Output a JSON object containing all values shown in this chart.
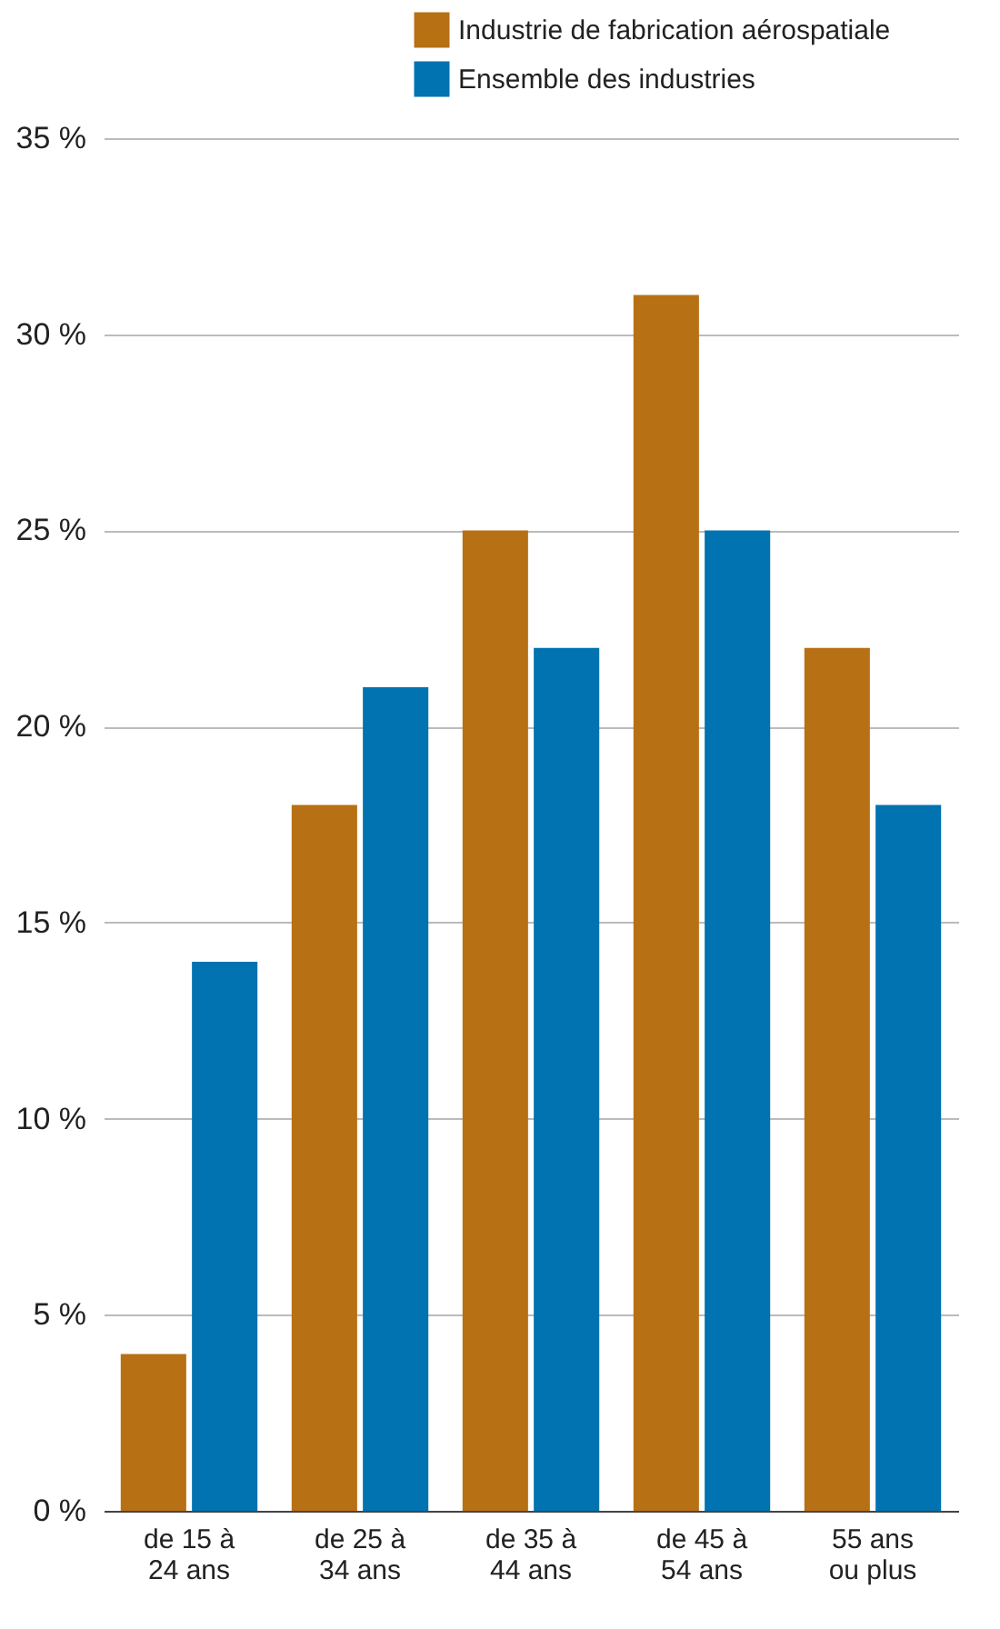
{
  "chart_data": {
    "type": "bar",
    "categories": [
      "de 15 à 24 ans",
      "de 25 à 34 ans",
      "de 35 à 44 ans",
      "de 45 à 54 ans",
      "55 ans ou plus"
    ],
    "series": [
      {
        "name": "Industrie de fabrication aérospatiale",
        "color": "#b87014",
        "values": [
          4,
          18,
          25,
          31,
          22
        ]
      },
      {
        "name": "Ensemble des industries",
        "color": "#0073b0",
        "values": [
          14,
          21,
          22,
          25,
          18
        ]
      }
    ],
    "ylim": [
      0,
      35
    ],
    "yticks": [
      {
        "value": 0,
        "label": "0 %"
      },
      {
        "value": 5,
        "label": "5 %"
      },
      {
        "value": 10,
        "label": "10 %"
      },
      {
        "value": 15,
        "label": "15 %"
      },
      {
        "value": 20,
        "label": "20 %"
      },
      {
        "value": 25,
        "label": "25 %"
      },
      {
        "value": 30,
        "label": "30 %"
      },
      {
        "value": 35,
        "label": "35 %"
      }
    ],
    "grid": "y",
    "legend": "top right"
  }
}
